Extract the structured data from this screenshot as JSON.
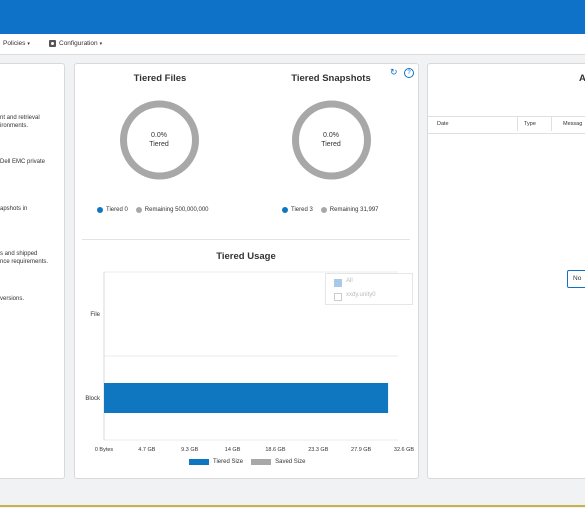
{
  "menu": {
    "policies_label": "Policies",
    "configuration_label": "Configuration",
    "caret": "▾"
  },
  "left_panel": {
    "lines": [
      "nt and retrieval",
      "ironments.",
      "Dell EMC private",
      "apshots in",
      "s and shipped",
      "nce requirements.",
      "versions."
    ]
  },
  "tiered_files": {
    "title": "Tiered Files",
    "percent": "0.0%",
    "label": "Tiered",
    "legend_tiered": "Tiered 0",
    "legend_remaining": "Remaining 500,000,000"
  },
  "tiered_snapshots": {
    "title": "Tiered Snapshots",
    "percent": "0.0%",
    "label": "Tiered",
    "legend_tiered": "Tiered 3",
    "legend_remaining": "Remaining 31,997"
  },
  "toolbar": {
    "refresh_icon": "↻",
    "help_icon": "?"
  },
  "tiered_usage": {
    "title": "Tiered Usage",
    "filter": {
      "all_label": "All",
      "item_label": "xxdy.unity0"
    }
  },
  "chart_data": {
    "type": "bar",
    "orientation": "horizontal",
    "title": "Tiered Usage",
    "categories": [
      "File",
      "Block"
    ],
    "series": [
      {
        "name": "Tiered Size",
        "values": [
          0,
          31.5
        ],
        "color": "#0f77c0"
      },
      {
        "name": "Saved Size",
        "values": [
          0,
          0
        ],
        "color": "#a8a8a8"
      }
    ],
    "x_ticks": [
      "0 Bytes",
      "4.7 GB",
      "9.3 GB",
      "14 GB",
      "18.6 GB",
      "23.3 GB",
      "27.9 GB",
      "32.6 GB"
    ],
    "xlim": [
      0,
      32.6
    ],
    "unit": "GB",
    "grid": true,
    "legend": "bottom"
  },
  "right_panel": {
    "title": "A",
    "columns": [
      "Date",
      "Type",
      "Messag"
    ],
    "no_data": "No"
  }
}
